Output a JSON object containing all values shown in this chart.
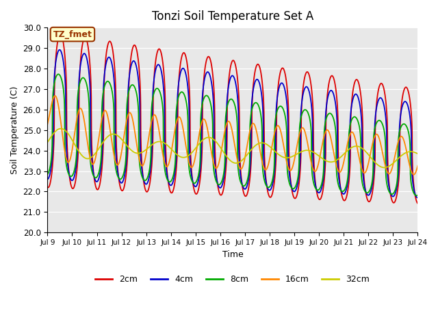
{
  "title": "Tonzi Soil Temperature Set A",
  "xlabel": "Time",
  "ylabel": "Soil Temperature (C)",
  "ylim": [
    20.0,
    30.0
  ],
  "yticks": [
    20.0,
    21.0,
    22.0,
    23.0,
    24.0,
    25.0,
    26.0,
    27.0,
    28.0,
    29.0,
    30.0
  ],
  "xtick_labels": [
    "Jul 9",
    "Jul 10",
    "Jul 11",
    "Jul 12",
    "Jul 13",
    "Jul 14",
    "Jul 15",
    "Jul 16",
    "Jul 17",
    "Jul 18",
    "Jul 19",
    "Jul 20",
    "Jul 21",
    "Jul 22",
    "Jul 23",
    "Jul 24"
  ],
  "legend_label": "TZ_fmet",
  "legend_label_bg": "#ffffcc",
  "legend_label_edge": "#993300",
  "plot_bg": "#e8e8e8",
  "fig_bg": "#ffffff",
  "series": [
    {
      "label": "2cm",
      "color": "#dd0000",
      "lw": 1.3
    },
    {
      "label": "4cm",
      "color": "#0000cc",
      "lw": 1.3
    },
    {
      "label": "8cm",
      "color": "#00aa00",
      "lw": 1.3
    },
    {
      "label": "16cm",
      "color": "#ff8800",
      "lw": 1.3
    },
    {
      "label": "32cm",
      "color": "#cccc00",
      "lw": 1.3
    }
  ],
  "start_day": 9,
  "end_day": 24,
  "points_per_day": 144
}
